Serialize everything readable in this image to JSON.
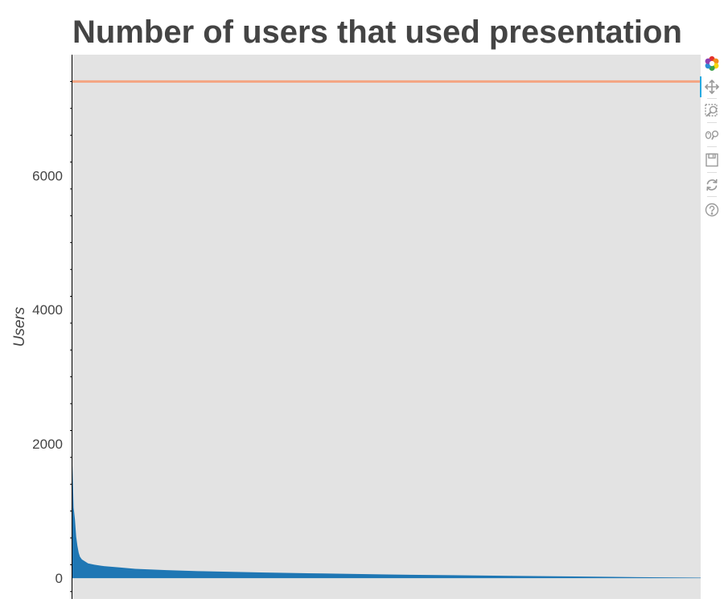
{
  "chart_data": {
    "type": "area",
    "title": "Number of users that used presentation",
    "xlabel": "",
    "ylabel": "Users",
    "ylim": [
      -310,
      7800
    ],
    "yticks": [
      0,
      2000,
      4000,
      6000
    ],
    "ytick_labels": [
      "0",
      "2000",
      "4000",
      "6000"
    ],
    "x_axis_visible": false,
    "background_color": "#e3e3e3",
    "area_color": "#1f77b4",
    "reference_line": {
      "value": 7400,
      "color": "#f4a582"
    },
    "grid": false,
    "legend": "none",
    "n_points": 1000,
    "series": [
      {
        "x": [
          0,
          2,
          4,
          6,
          8,
          10,
          12,
          15,
          20,
          25,
          35,
          50,
          75,
          100,
          150,
          200,
          300,
          400,
          500,
          600,
          700,
          800,
          900,
          1000
        ],
        "values": [
          1680,
          1050,
          880,
          620,
          480,
          380,
          320,
          280,
          250,
          220,
          200,
          180,
          160,
          140,
          120,
          105,
          85,
          70,
          55,
          45,
          35,
          25,
          15,
          8
        ]
      }
    ]
  },
  "toolbar": {
    "tools": [
      {
        "name": "bokeh-logo-icon",
        "label": "Bokeh"
      },
      {
        "name": "pan-icon",
        "label": "Pan"
      },
      {
        "name": "box-zoom-icon",
        "label": "Box Zoom"
      },
      {
        "name": "wheel-zoom-icon",
        "label": "Wheel Zoom"
      },
      {
        "name": "save-icon",
        "label": "Save"
      },
      {
        "name": "reset-icon",
        "label": "Reset"
      },
      {
        "name": "help-icon",
        "label": "Help"
      }
    ],
    "active_color": "#26aae1"
  }
}
